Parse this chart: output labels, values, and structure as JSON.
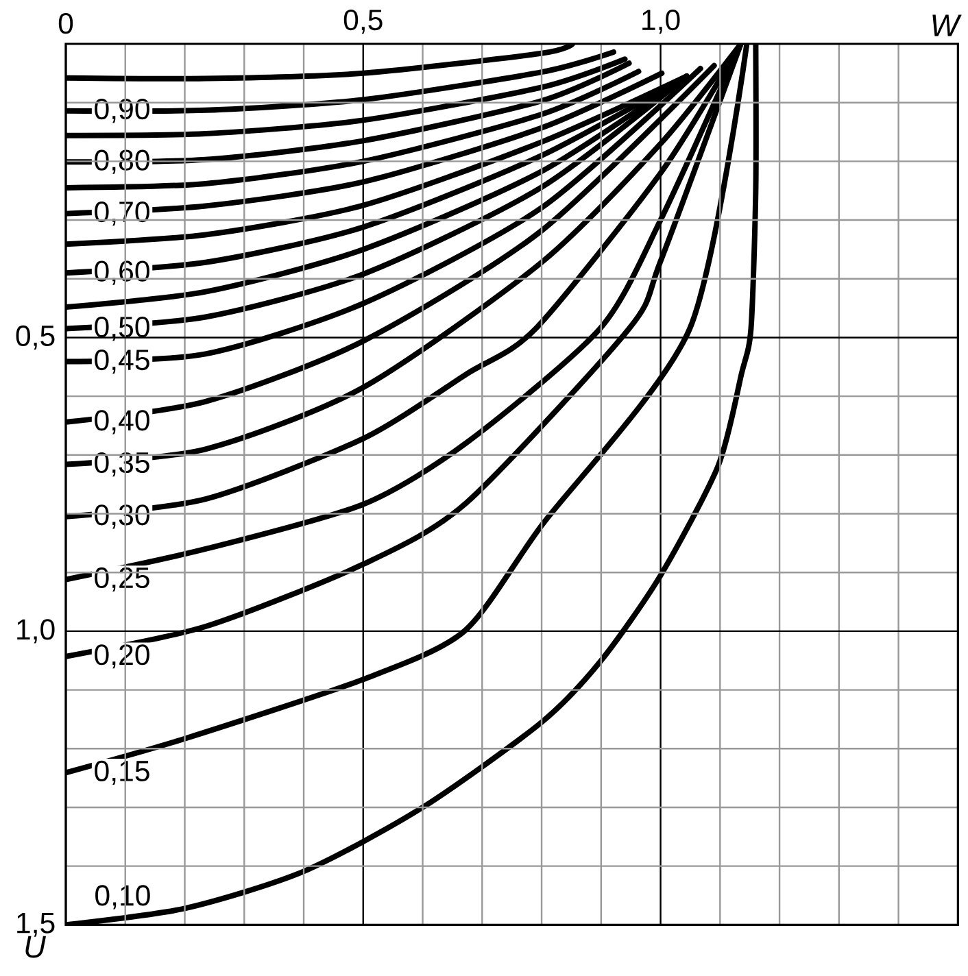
{
  "chart_data": {
    "type": "line",
    "xlabel": "W",
    "ylabel": "U",
    "xlim": [
      0,
      1.5
    ],
    "ylim": [
      1.5,
      0
    ],
    "grid": true,
    "xticks": [
      {
        "value": 0,
        "label": "0"
      },
      {
        "value": 0.1,
        "label": null
      },
      {
        "value": 0.2,
        "label": null
      },
      {
        "value": 0.3,
        "label": null
      },
      {
        "value": 0.4,
        "label": null
      },
      {
        "value": 0.5,
        "label": "0,5"
      },
      {
        "value": 0.6,
        "label": null
      },
      {
        "value": 0.7,
        "label": null
      },
      {
        "value": 0.8,
        "label": null
      },
      {
        "value": 0.9,
        "label": null
      },
      {
        "value": 1.0,
        "label": "1,0"
      },
      {
        "value": 1.1,
        "label": null
      },
      {
        "value": 1.2,
        "label": null
      },
      {
        "value": 1.3,
        "label": null
      },
      {
        "value": 1.4,
        "label": null
      }
    ],
    "yticks": [
      {
        "value": 0.1,
        "label": null
      },
      {
        "value": 0.2,
        "label": null
      },
      {
        "value": 0.3,
        "label": null
      },
      {
        "value": 0.4,
        "label": null
      },
      {
        "value": 0.5,
        "label": "0,5"
      },
      {
        "value": 0.6,
        "label": null
      },
      {
        "value": 0.7,
        "label": null
      },
      {
        "value": 0.8,
        "label": null
      },
      {
        "value": 0.9,
        "label": null
      },
      {
        "value": 1.0,
        "label": "1,0"
      },
      {
        "value": 1.1,
        "label": null
      },
      {
        "value": 1.2,
        "label": null
      },
      {
        "value": 1.3,
        "label": null
      },
      {
        "value": 1.4,
        "label": null
      },
      {
        "value": 1.5,
        "label": "1,5"
      }
    ],
    "series": [
      {
        "color": "#000000",
        "x": [
          0,
          0.235,
          0.5,
          0.8,
          0.852
        ],
        "values": [
          0.058,
          0.059,
          0.05,
          0.016,
          0.0
        ]
      },
      {
        "name": "0,90",
        "color": "#000000",
        "x": [
          0,
          0.235,
          0.5,
          0.8,
          0.921
        ],
        "values": [
          0.114,
          0.113,
          0.095,
          0.048,
          0.014
        ]
      },
      {
        "color": "#000000",
        "x": [
          0,
          0.235,
          0.5,
          0.8,
          0.94
        ],
        "values": [
          0.156,
          0.153,
          0.13,
          0.074,
          0.026
        ]
      },
      {
        "name": "0,80",
        "color": "#000000",
        "x": [
          0,
          0.235,
          0.5,
          0.8,
          0.947
        ],
        "values": [
          0.201,
          0.197,
          0.165,
          0.097,
          0.033
        ]
      },
      {
        "color": "#000000",
        "x": [
          0,
          0.235,
          0.5,
          0.8,
          0.963
        ],
        "values": [
          0.245,
          0.238,
          0.2,
          0.12,
          0.047
        ]
      },
      {
        "name": "0,70",
        "color": "#000000",
        "x": [
          0,
          0.235,
          0.5,
          0.8,
          1.002
        ],
        "values": [
          0.289,
          0.276,
          0.235,
          0.143,
          0.05
        ]
      },
      {
        "color": "#000000",
        "x": [
          0,
          0.235,
          0.5,
          0.8,
          1.044
        ],
        "values": [
          0.341,
          0.325,
          0.275,
          0.167,
          0.055
        ]
      },
      {
        "name": "0,60",
        "color": "#000000",
        "x": [
          0,
          0.235,
          0.5,
          0.8,
          1.044
        ],
        "values": [
          0.39,
          0.372,
          0.312,
          0.19,
          0.055
        ]
      },
      {
        "color": "#000000",
        "x": [
          0,
          0.235,
          0.5,
          0.8,
          1.044
        ],
        "values": [
          0.448,
          0.422,
          0.35,
          0.217,
          0.055
        ]
      },
      {
        "name": "0,50",
        "color": "#000000",
        "x": [
          0,
          0.235,
          0.5,
          0.8,
          1.044
        ],
        "values": [
          0.485,
          0.465,
          0.392,
          0.244,
          0.055
        ]
      },
      {
        "name": "0,45",
        "color": "#000000",
        "x": [
          0,
          0.235,
          0.5,
          0.8,
          1.067
        ],
        "values": [
          0.541,
          0.528,
          0.442,
          0.279,
          0.042
        ]
      },
      {
        "name": "0,40",
        "color": "#000000",
        "x": [
          0,
          0.235,
          0.5,
          0.8,
          1.09
        ],
        "values": [
          0.644,
          0.609,
          0.506,
          0.318,
          0.037
        ]
      },
      {
        "name": "0,35",
        "color": "#000000",
        "x": [
          0,
          0.235,
          0.5,
          0.8,
          1.0,
          1.135
        ],
        "values": [
          0.716,
          0.69,
          0.585,
          0.372,
          0.17,
          0
        ]
      },
      {
        "name": "0,30",
        "color": "#000000",
        "x": [
          0,
          0.235,
          0.5,
          0.674,
          0.79,
          1.0,
          1.135
        ],
        "values": [
          0.805,
          0.775,
          0.672,
          0.562,
          0.485,
          0.22,
          0
        ]
      },
      {
        "name": "0,25",
        "color": "#000000",
        "x": [
          0,
          0.235,
          0.5,
          0.674,
          0.898,
          1.0,
          1.135
        ],
        "values": [
          0.912,
          0.86,
          0.784,
          0.679,
          0.485,
          0.3,
          0
        ]
      },
      {
        "name": "0,20",
        "color": "#000000",
        "x": [
          0,
          0.235,
          0.5,
          0.674,
          0.947,
          1.0,
          1.135
        ],
        "values": [
          1.043,
          0.992,
          0.886,
          0.781,
          0.485,
          0.37,
          0
        ]
      },
      {
        "name": "0,15",
        "color": "#000000",
        "x": [
          0,
          0.2,
          0.5,
          0.67,
          0.8,
          1.049,
          1.145
        ],
        "values": [
          1.241,
          1.183,
          1.082,
          1.0,
          0.82,
          0.485,
          0
        ]
      },
      {
        "name": "0,10",
        "color": "#000000",
        "x": [
          0,
          0.2,
          0.4,
          0.6,
          0.8,
          0.9,
          1.0,
          1.097,
          1.136,
          1.152,
          1.16,
          1.16
        ],
        "values": [
          1.5,
          1.472,
          1.409,
          1.3,
          1.155,
          1.05,
          0.905,
          0.718,
          0.562,
          0.485,
          0.25,
          0
        ]
      }
    ]
  }
}
